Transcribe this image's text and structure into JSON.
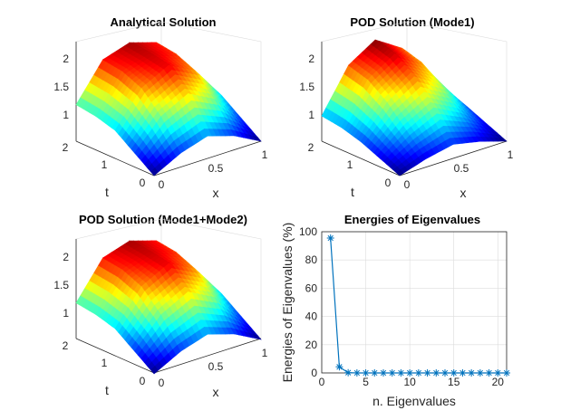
{
  "chart_data": [
    {
      "type": "surface",
      "title": "Analytical Solution",
      "xlabel": "x",
      "ylabel": "t",
      "x_ticks": [
        "0",
        "0.5",
        "1"
      ],
      "y_ticks": [
        "0",
        "1",
        "2"
      ],
      "z_ticks": [
        "1",
        "1.5",
        "2"
      ],
      "xlim": [
        0,
        1
      ],
      "ylim": [
        0,
        2
      ],
      "zlim": [
        0.6,
        2.1
      ],
      "colormap": "jet",
      "grid": true,
      "surface": {
        "x": [
          0,
          0.25,
          0.5,
          0.75,
          1
        ],
        "t": [
          0,
          0.5,
          1,
          1.5,
          2
        ],
        "z": [
          [
            0.6,
            0.85,
            1.0,
            0.85,
            0.6
          ],
          [
            0.85,
            1.35,
            1.6,
            1.35,
            0.85
          ],
          [
            1.1,
            1.7,
            1.95,
            1.7,
            1.1
          ],
          [
            1.2,
            1.85,
            2.0,
            1.85,
            1.2
          ],
          [
            1.25,
            1.9,
            2.05,
            1.9,
            1.25
          ]
        ]
      }
    },
    {
      "type": "surface",
      "title": "POD Solution (Mode1)",
      "xlabel": "x",
      "ylabel": "t",
      "x_ticks": [
        "0",
        "0.5",
        "1"
      ],
      "y_ticks": [
        "0",
        "1",
        "2"
      ],
      "z_ticks": [
        "1",
        "1.5",
        "2"
      ],
      "xlim": [
        0,
        1
      ],
      "ylim": [
        0,
        2
      ],
      "zlim": [
        0.6,
        2.1
      ],
      "colormap": "jet",
      "grid": true,
      "surface": {
        "x": [
          0,
          0.25,
          0.5,
          0.75,
          1
        ],
        "t": [
          0,
          0.5,
          1,
          1.5,
          2
        ],
        "z": [
          [
            0.6,
            0.75,
            0.85,
            0.75,
            0.6
          ],
          [
            0.75,
            1.1,
            1.35,
            1.1,
            0.75
          ],
          [
            0.9,
            1.45,
            1.75,
            1.45,
            0.9
          ],
          [
            1.0,
            1.7,
            2.0,
            1.7,
            1.0
          ],
          [
            1.05,
            1.8,
            2.1,
            1.8,
            1.05
          ]
        ]
      }
    },
    {
      "type": "surface",
      "title": "POD Solution (Mode1+Mode2)",
      "xlabel": "x",
      "ylabel": "t",
      "x_ticks": [
        "0",
        "0.5",
        "1"
      ],
      "y_ticks": [
        "0",
        "1",
        "2"
      ],
      "z_ticks": [
        "1",
        "1.5",
        "2"
      ],
      "xlim": [
        0,
        1
      ],
      "ylim": [
        0,
        2
      ],
      "zlim": [
        0.6,
        2.1
      ],
      "colormap": "jet",
      "grid": true,
      "surface": {
        "x": [
          0,
          0.25,
          0.5,
          0.75,
          1
        ],
        "t": [
          0,
          0.5,
          1,
          1.5,
          2
        ],
        "z": [
          [
            0.6,
            0.85,
            1.0,
            0.85,
            0.6
          ],
          [
            0.85,
            1.35,
            1.6,
            1.35,
            0.85
          ],
          [
            1.1,
            1.7,
            1.95,
            1.7,
            1.1
          ],
          [
            1.2,
            1.85,
            2.0,
            1.85,
            1.2
          ],
          [
            1.25,
            1.9,
            2.05,
            1.9,
            1.25
          ]
        ]
      }
    },
    {
      "type": "line",
      "title": "Energies of Eigenvalues",
      "xlabel": "n. Eigenvalues",
      "ylabel": "Energies of Eigenvalues (%)",
      "xlim": [
        0,
        21
      ],
      "ylim": [
        0,
        100
      ],
      "x_ticks": [
        0,
        5,
        10,
        15,
        20
      ],
      "y_ticks": [
        0,
        20,
        40,
        60,
        80,
        100
      ],
      "grid": true,
      "marker": "asterisk",
      "color": "#0072bd",
      "x": [
        1,
        2,
        3,
        4,
        5,
        6,
        7,
        8,
        9,
        10,
        11,
        12,
        13,
        14,
        15,
        16,
        17,
        18,
        19,
        20,
        21
      ],
      "y": [
        95.5,
        4.3,
        0.2,
        0,
        0,
        0,
        0,
        0,
        0,
        0,
        0,
        0,
        0,
        0,
        0,
        0,
        0,
        0,
        0,
        0,
        0
      ]
    }
  ]
}
